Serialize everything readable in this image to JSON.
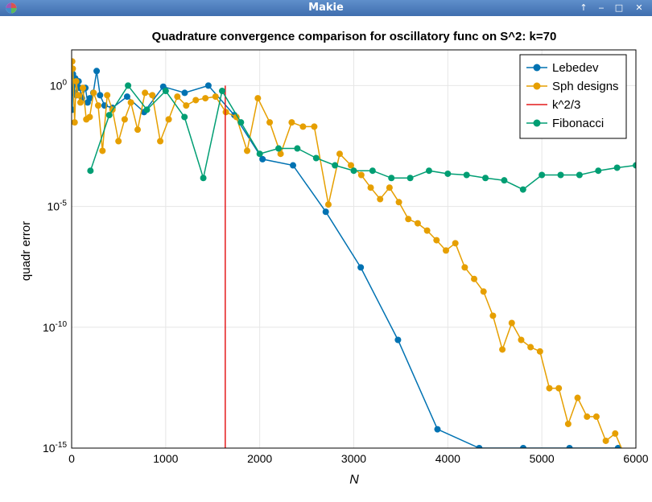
{
  "window": {
    "title": "Makie",
    "buttons": [
      "↑",
      "‒",
      "□",
      "✕"
    ]
  },
  "chart_data": {
    "type": "line",
    "title": "Quadrature convergence comparison for oscillatory func on S^2: k=70",
    "xlabel": "N",
    "ylabel": "quadr error",
    "xlim": [
      0,
      6000
    ],
    "ylim": [
      1e-15,
      30
    ],
    "yscale": "log10",
    "grid": true,
    "legend_position": "top-right",
    "x_ticks": [
      0,
      1000,
      2000,
      3000,
      4000,
      5000,
      6000
    ],
    "x_tick_labels": [
      "0",
      "1000",
      "2000",
      "3000",
      "4000",
      "5000",
      "6000"
    ],
    "y_ticks": [
      1,
      1e-05,
      1e-10,
      1e-15
    ],
    "y_tick_labels": [
      "10^0",
      "10^-5",
      "10^-10",
      "10^-15"
    ],
    "series": [
      {
        "name": "Lebedev",
        "color": "#0072b2",
        "style": "line+markers",
        "x": [
          6,
          14,
          26,
          38,
          50,
          74,
          86,
          110,
          146,
          170,
          194,
          230,
          266,
          302,
          350,
          434,
          590,
          770,
          974,
          1202,
          1454,
          1730,
          2030,
          2354,
          2702,
          3074,
          3470,
          3890,
          4334,
          4802,
          5294,
          5810
        ],
        "y": [
          0.1,
          3,
          0.5,
          2,
          0.4,
          1.5,
          0.8,
          0.3,
          0.8,
          0.2,
          0.3,
          0.5,
          4,
          0.4,
          0.15,
          0.12,
          0.35,
          0.08,
          0.9,
          0.5,
          1.0,
          0.06,
          0.0009,
          0.0005,
          6e-06,
          3e-08,
          3e-11,
          6e-15,
          1e-15,
          1e-15,
          1e-15,
          1e-15
        ]
      },
      {
        "name": "Sph designs",
        "color": "#e69f00",
        "style": "line+markers",
        "x": [
          6,
          12,
          32,
          48,
          70,
          94,
          120,
          156,
          192,
          234,
          282,
          328,
          378,
          434,
          498,
          564,
          630,
          702,
          780,
          858,
          942,
          1032,
          1124,
          1218,
          1320,
          1422,
          1530,
          1640,
          1752,
          1866,
          1980,
          2106,
          2222,
          2340,
          2460,
          2580,
          2730,
          2850,
          2970,
          3080,
          3180,
          3280,
          3380,
          3480,
          3580,
          3680,
          3780,
          3880,
          3980,
          4080,
          4180,
          4280,
          4380,
          4480,
          4580,
          4680,
          4780,
          4880,
          4980,
          5080,
          5180,
          5280,
          5380,
          5480,
          5580,
          5680,
          5780,
          5880,
          5970
        ],
        "y": [
          10,
          5,
          0.03,
          1.5,
          0.4,
          0.2,
          0.8,
          0.04,
          0.05,
          0.5,
          0.15,
          0.002,
          0.4,
          0.1,
          0.005,
          0.04,
          0.2,
          0.015,
          0.5,
          0.4,
          0.005,
          0.04,
          0.35,
          0.15,
          0.25,
          0.3,
          0.35,
          0.08,
          0.05,
          0.002,
          0.3,
          0.03,
          0.0015,
          0.03,
          0.02,
          0.02,
          1.2e-05,
          0.0015,
          0.0005,
          0.0002,
          6e-05,
          2e-05,
          6e-05,
          1.5e-05,
          3e-06,
          2e-06,
          1e-06,
          4e-07,
          1.5e-07,
          3e-07,
          3e-08,
          1e-08,
          3e-09,
          3e-10,
          1.2e-11,
          1.5e-10,
          3e-11,
          1.5e-11,
          1e-11,
          3e-13,
          3e-13,
          1e-14,
          1.2e-13,
          2e-14,
          2e-14,
          2e-15,
          4e-15,
          5e-16,
          2e-16
        ]
      },
      {
        "name": "k^2/3",
        "color": "#e41a1c",
        "style": "vline",
        "x": [
          1633.33,
          1633.33
        ],
        "y": [
          1e-15,
          1
        ]
      },
      {
        "name": "Fibonacci",
        "color": "#009e73",
        "style": "line+markers",
        "x": [
          200,
          400,
          600,
          800,
          1000,
          1200,
          1400,
          1600,
          1800,
          2000,
          2200,
          2400,
          2600,
          2800,
          3000,
          3200,
          3400,
          3600,
          3800,
          4000,
          4200,
          4400,
          4600,
          4800,
          5000,
          5200,
          5400,
          5600,
          5800,
          6000
        ],
        "y": [
          0.0003,
          0.06,
          1,
          0.1,
          0.6,
          0.05,
          0.00015,
          0.6,
          0.03,
          0.0015,
          0.0025,
          0.0025,
          0.001,
          0.0005,
          0.0003,
          0.0003,
          0.00015,
          0.00015,
          0.0003,
          0.000225,
          0.0002,
          0.00015,
          0.00012,
          5e-05,
          0.0002,
          0.0002,
          0.0002,
          0.0003,
          0.0004,
          0.0005
        ]
      }
    ]
  }
}
